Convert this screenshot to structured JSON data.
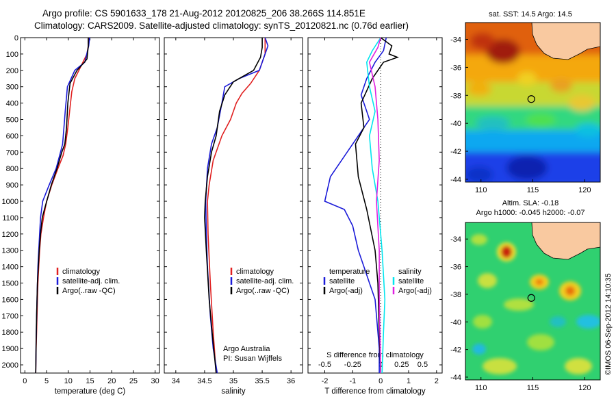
{
  "header": {
    "line1": "Argo profile: CS 5901633_178 21-Aug-2012 20120825_206 38.266S 114.851E",
    "line2": "Climatology: CARS2009. Satellite-adjusted climatology: synTS_20120821.nc (0.76d earlier)"
  },
  "colors": {
    "climatology": "#e02020",
    "satellite": "#1a1ad8",
    "argo": "#000000",
    "satellite_salinity": "#00e5ee",
    "argo_salinity": "#e020e0",
    "land": "#f9c9a0"
  },
  "chart_data": [
    {
      "type": "line",
      "panel": "temperature",
      "xlabel": "temperature (deg C)",
      "xlim": [
        -1,
        31
      ],
      "xticks": [
        "0",
        "5",
        "10",
        "15",
        "20",
        "25",
        "30"
      ],
      "ylim": [
        0,
        2050
      ],
      "yticks": [
        "0",
        "100",
        "200",
        "300",
        "400",
        "500",
        "600",
        "700",
        "800",
        "900",
        "1000",
        "1100",
        "1200",
        "1300",
        "1400",
        "1500",
        "1600",
        "1700",
        "1800",
        "1900",
        "2000"
      ],
      "legend": [
        "climatology",
        "satellite-adj. clim.",
        "Argo(..raw -QC)"
      ],
      "series": [
        {
          "name": "climatology",
          "color": "red",
          "x": [
            14.6,
            14.6,
            14.3,
            13.0,
            11.5,
            10.8,
            10.3,
            9.9,
            9.4,
            8.8,
            7.6,
            6.2,
            5.0,
            4.3,
            3.7,
            3.4,
            3.2,
            3.0,
            2.9,
            2.8,
            2.7,
            2.6,
            2.5
          ],
          "y": [
            0,
            50,
            100,
            170,
            250,
            330,
            450,
            550,
            650,
            720,
            800,
            900,
            1000,
            1100,
            1200,
            1300,
            1400,
            1500,
            1600,
            1700,
            1800,
            1900,
            2050
          ]
        },
        {
          "name": "satellite-adj. clim.",
          "color": "blue",
          "x": [
            14.9,
            14.7,
            13.8,
            11.5,
            9.8,
            9.3,
            9.0,
            8.7,
            8.2,
            7.2,
            5.6,
            4.1,
            3.6,
            3.4,
            3.2,
            3.0,
            2.9,
            2.8,
            2.7,
            2.6,
            2.5
          ],
          "y": [
            0,
            50,
            150,
            200,
            300,
            450,
            550,
            650,
            700,
            800,
            900,
            1000,
            1100,
            1200,
            1300,
            1400,
            1500,
            1600,
            1700,
            1850,
            2050
          ]
        },
        {
          "name": "Argo(..raw -QC)",
          "color": "black",
          "x": [
            14.6,
            14.6,
            14.5,
            14.3,
            13.7,
            12.0,
            10.4,
            9.9,
            9.6,
            9.2,
            8.5,
            7.4,
            6.1,
            4.5,
            4.0,
            3.6,
            3.3,
            3.1,
            2.9,
            2.7,
            2.6,
            2.5
          ],
          "y": [
            0,
            50,
            80,
            130,
            150,
            200,
            280,
            400,
            550,
            650,
            700,
            800,
            900,
            1050,
            1100,
            1200,
            1300,
            1400,
            1500,
            1700,
            1850,
            2050
          ]
        }
      ]
    },
    {
      "type": "line",
      "panel": "salinity",
      "xlabel": "salinity",
      "xlim": [
        33.8,
        36.2
      ],
      "xticks": [
        "34",
        "34.5",
        "35",
        "35.5",
        "36"
      ],
      "ylim": [
        0,
        2050
      ],
      "legend": [
        "climatology",
        "satellite-adj. clim.",
        "Argo(..raw -QC)"
      ],
      "annotation": [
        "Argo Australia",
        "PI: Susan Wijffels"
      ],
      "series": [
        {
          "name": "climatology",
          "color": "red",
          "x": [
            35.55,
            35.55,
            35.45,
            35.3,
            35.15,
            35.05,
            34.95,
            34.8,
            34.65,
            34.58,
            34.55,
            34.56,
            34.6,
            34.65,
            34.7
          ],
          "y": [
            0,
            100,
            200,
            280,
            340,
            400,
            500,
            600,
            750,
            900,
            1000,
            1200,
            1500,
            1800,
            2050
          ]
        },
        {
          "name": "satellite-adj. clim.",
          "color": "blue",
          "x": [
            35.55,
            35.6,
            35.45,
            35.1,
            34.85,
            34.8,
            34.72,
            34.62,
            34.55,
            34.52,
            34.53,
            34.55,
            34.6,
            34.65,
            34.72
          ],
          "y": [
            0,
            50,
            200,
            250,
            300,
            400,
            550,
            650,
            800,
            1000,
            1200,
            1400,
            1700,
            1900,
            2050
          ]
        },
        {
          "name": "Argo(..raw -QC)",
          "color": "black",
          "x": [
            35.5,
            35.5,
            35.47,
            35.35,
            35.0,
            34.85,
            34.76,
            34.7,
            34.62,
            34.55,
            34.51,
            34.5,
            34.53,
            34.58,
            34.63,
            34.7
          ],
          "y": [
            0,
            60,
            120,
            200,
            270,
            350,
            450,
            600,
            700,
            850,
            1000,
            1100,
            1300,
            1600,
            1800,
            2050
          ]
        }
      ]
    },
    {
      "type": "line",
      "panel": "difference",
      "xlabel": "T difference from climatology",
      "xlim": [
        -2.6,
        2.2
      ],
      "xticks": [
        "-2",
        "-1",
        "0",
        "1",
        "2"
      ],
      "top_label": "S difference from climatology",
      "top_ticks": [
        "-0.5",
        "-0.25",
        "0",
        "0.25",
        "0.5"
      ],
      "ylim": [
        0,
        2050
      ],
      "legend_temperature": [
        "temperature",
        "satellite",
        "Argo(-adj)"
      ],
      "legend_salinity": [
        "salinity",
        "satellite",
        "Argo(-adj)"
      ],
      "series": [
        {
          "name": "satellite",
          "group": "temperature",
          "color": "blue",
          "x": [
            0.2,
            0.1,
            -0.2,
            -0.5,
            -0.7,
            -0.5,
            -0.4,
            -1.0,
            -1.8,
            -2.0,
            -1.3,
            -1.0,
            -0.8,
            -0.6,
            -0.4,
            -0.2,
            -0.1,
            -0.05,
            -0.05
          ],
          "y": [
            0,
            80,
            150,
            250,
            350,
            450,
            500,
            650,
            850,
            1000,
            1050,
            1150,
            1300,
            1400,
            1500,
            1600,
            1800,
            1900,
            2050
          ]
        },
        {
          "name": "Argo(-adj)",
          "group": "temperature",
          "color": "black",
          "x": [
            0.0,
            0.4,
            0.3,
            0.6,
            0.1,
            -0.3,
            -0.7,
            -0.6,
            -0.9,
            -0.8,
            -0.5,
            -0.2,
            -0.1,
            -0.05,
            0.0
          ],
          "y": [
            0,
            50,
            100,
            120,
            150,
            250,
            400,
            550,
            650,
            850,
            1050,
            1300,
            1500,
            1800,
            2050
          ]
        },
        {
          "name": "satellite",
          "group": "salinity",
          "color": "cyan",
          "x": [
            0.0,
            -0.3,
            -0.5,
            -0.4,
            -0.2,
            -0.4,
            -0.3,
            -0.1,
            0.05,
            0.15,
            0.1,
            0.05
          ],
          "y": [
            0,
            80,
            150,
            300,
            450,
            600,
            800,
            1000,
            1300,
            1600,
            1800,
            2050
          ]
        },
        {
          "name": "Argo(-adj)",
          "group": "salinity",
          "color": "magenta",
          "x": [
            0.0,
            -0.1,
            -0.4,
            -0.2,
            -0.1,
            -0.05,
            -0.15,
            -0.05,
            -0.05,
            0.0
          ],
          "y": [
            0,
            60,
            150,
            300,
            500,
            750,
            1000,
            1300,
            1600,
            2050
          ]
        }
      ]
    },
    {
      "type": "heatmap",
      "panel": "map-sst",
      "title": "sat. SST: 14.5  Argo: 14.5",
      "xlim": [
        108.5,
        121.5
      ],
      "ylim": [
        -44.2,
        -32.8
      ],
      "xticks": [
        "110",
        "115",
        "120"
      ],
      "yticks": [
        "-34",
        "-36",
        "-38",
        "-40",
        "-42",
        "-44"
      ],
      "marker": {
        "lon": 114.851,
        "lat": -38.266
      }
    },
    {
      "type": "heatmap",
      "panel": "map-sla",
      "title": "Altim. SLA: -0.18",
      "subtitle": "Argo h1000: -0.045 h2000: -0.07",
      "xlim": [
        108.5,
        121.5
      ],
      "ylim": [
        -44.2,
        -32.8
      ],
      "xticks": [
        "110",
        "115",
        "120"
      ],
      "yticks": [
        "-34",
        "-36",
        "-38",
        "-40",
        "-42",
        "-44"
      ],
      "marker": {
        "lon": 114.851,
        "lat": -38.266
      }
    }
  ],
  "watermark": "©IMOS 06-Sep-2012 14:10:35"
}
